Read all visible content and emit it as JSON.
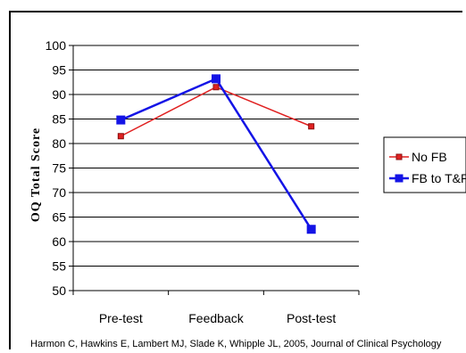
{
  "chart_data": {
    "type": "line",
    "categories": [
      "Pre-test",
      "Feedback",
      "Post-test"
    ],
    "series": [
      {
        "name": "No FB",
        "values": [
          81.5,
          91.5,
          83.5
        ],
        "color": "#e02020",
        "marker": "square-small"
      },
      {
        "name": "FB to T&P",
        "values": [
          84.8,
          93.2,
          62.5
        ],
        "color": "#1414e6",
        "marker": "square"
      }
    ],
    "title": "",
    "xlabel": "",
    "ylabel": "OQ Total Score",
    "ylim": [
      50,
      100
    ],
    "yticks": [
      50,
      55,
      60,
      65,
      70,
      75,
      80,
      85,
      90,
      95,
      100
    ],
    "grid": true,
    "legend": "right"
  },
  "citation": "Harmon C, Hawkins E, Lambert MJ, Slade K, Whipple JL, 2005, Journal of Clinical Psychology"
}
